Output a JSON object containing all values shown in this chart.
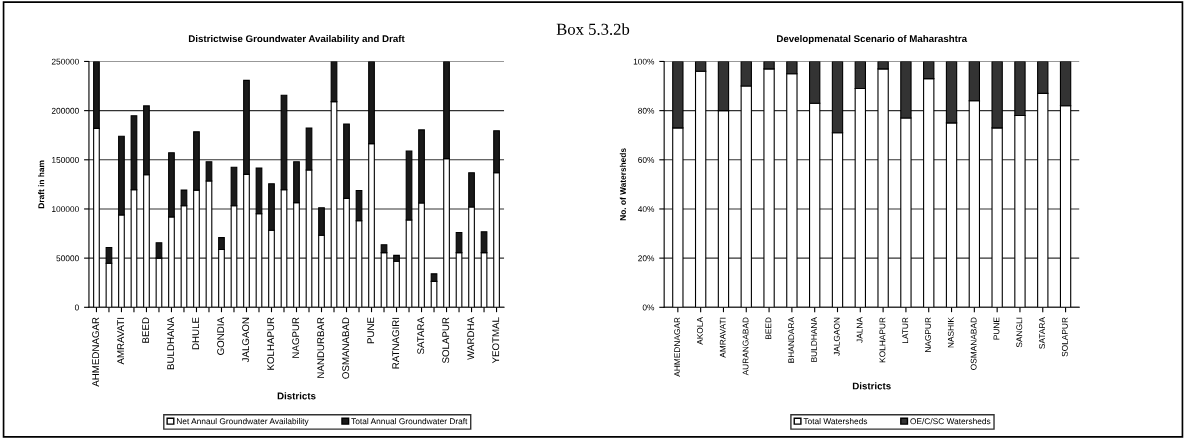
{
  "chart_data": [
    {
      "type": "bar",
      "title": "Districtwise Groundwater Availability and Draft",
      "xlabel": "Districts",
      "ylabel": "Draft in ham",
      "annotations": [
        "Box 5.3.2b"
      ],
      "stacked": true,
      "categories": [
        "AHMEDNAGAR",
        null,
        "AMRAVATI",
        null,
        "BEED",
        null,
        "BULDHANA",
        null,
        "DHULE",
        null,
        "GONDIA",
        null,
        "JALGAON",
        null,
        "KOLHAPUR",
        null,
        "NAGPUR",
        null,
        "NANDURBAR",
        null,
        "OSMANABAD",
        null,
        "PUNE",
        null,
        "RATNAGIRI",
        null,
        "SATARA",
        null,
        "SOLAPUR",
        null,
        "WARDHA",
        null,
        "YEOTMAL"
      ],
      "series": [
        {
          "name": "Net Annaul Groundwater Availability",
          "color": "#ffffff",
          "values": [
            182000,
            44800,
            94000,
            119600,
            134800,
            50000,
            92000,
            103200,
            119200,
            128400,
            58800,
            103200,
            135200,
            95200,
            78400,
            119600,
            106400,
            139600,
            73200,
            209200,
            110800,
            88000,
            166400,
            55600,
            46800,
            88800,
            106000,
            26400,
            151200,
            55600,
            102000,
            55600,
            136800
          ]
        },
        {
          "name": "Total Annual Groundwater Draft",
          "color": "#1a1a1a",
          "values": [
            68000,
            16000,
            80000,
            75200,
            70000,
            15600,
            65200,
            16000,
            59200,
            19600,
            12000,
            39200,
            95600,
            46400,
            47200,
            96000,
            41600,
            42800,
            28000,
            40800,
            75600,
            30800,
            83600,
            8000,
            6000,
            70000,
            74400,
            7600,
            98800,
            20400,
            34800,
            21200,
            42800
          ]
        }
      ],
      "ylim": [
        0,
        250000
      ],
      "yticks": [
        0,
        50000,
        100000,
        150000,
        200000,
        250000
      ],
      "grid": "y",
      "legend": "bottom"
    },
    {
      "type": "bar",
      "title": "Developmenatal Scenario of Maharashtra",
      "xlabel": "Districts",
      "ylabel": "No. of Watersheds",
      "stacked": true,
      "categories": [
        "AHMEDNAGAR",
        "AKOLA",
        "AMRAVATI",
        "AURANGABAD",
        "BEED",
        "BHANDARA",
        "BULDHANA",
        "JALGAON",
        "JALNA",
        "KOLHAPUR",
        "LATUR",
        "NAGPUR",
        "NASHIK",
        "OSMANABAD",
        "PUNE",
        "SANGLI",
        "SATARA",
        "SOLAPUR"
      ],
      "series": [
        {
          "name": "Total Watersheds",
          "color": "#ffffff",
          "values": [
            73,
            96,
            80,
            90,
            97,
            95,
            83,
            71,
            89,
            97,
            77,
            93,
            75,
            84,
            73,
            78,
            87,
            82
          ]
        },
        {
          "name": "OE/C/SC Watersheds",
          "color": "#333333",
          "values": [
            27,
            4,
            20,
            10,
            3,
            5,
            17,
            29,
            11,
            3,
            23,
            7,
            25,
            16,
            27,
            22,
            13,
            18
          ]
        }
      ],
      "ylim": [
        0,
        100
      ],
      "yticks": [
        {
          "value": 0,
          "label": "0%"
        },
        {
          "value": 20,
          "label": "20%"
        },
        {
          "value": 40,
          "label": "40%"
        },
        {
          "value": 60,
          "label": "60%"
        },
        {
          "value": 80,
          "label": "80%"
        },
        {
          "value": 100,
          "label": "100%"
        }
      ],
      "grid": "y",
      "legend": "bottom"
    }
  ]
}
